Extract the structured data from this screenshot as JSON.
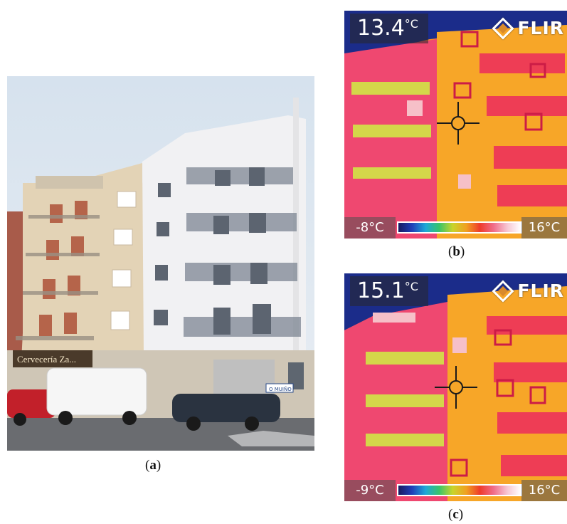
{
  "figure": {
    "panel_a": {
      "caption_open": "(",
      "caption_letter": "a",
      "caption_close": ")"
    },
    "panel_b": {
      "caption_open": "(",
      "caption_letter": "b",
      "caption_close": ")",
      "spot_temp": "13.4",
      "temp_unit": "°C",
      "brand": "FLIR",
      "scale_min": "-8°C",
      "scale_max": "16°C"
    },
    "panel_c": {
      "caption_open": "(",
      "caption_letter": "c",
      "caption_close": ")",
      "spot_temp": "15.1",
      "temp_unit": "°C",
      "brand": "FLIR",
      "scale_min": "-9°C",
      "scale_max": "16°C"
    },
    "photo_signs": {
      "bar_name": "Cervecería Za...",
      "street_sign": "O MUIÑO"
    },
    "colors": {
      "sky": "#d9e4ee",
      "cream_building": "#e2d3b8",
      "white_building": "#f2f2f4",
      "thermal_hot": "#f0406a",
      "thermal_warm": "#f7a21e",
      "thermal_cool": "#1a2a8a"
    }
  }
}
